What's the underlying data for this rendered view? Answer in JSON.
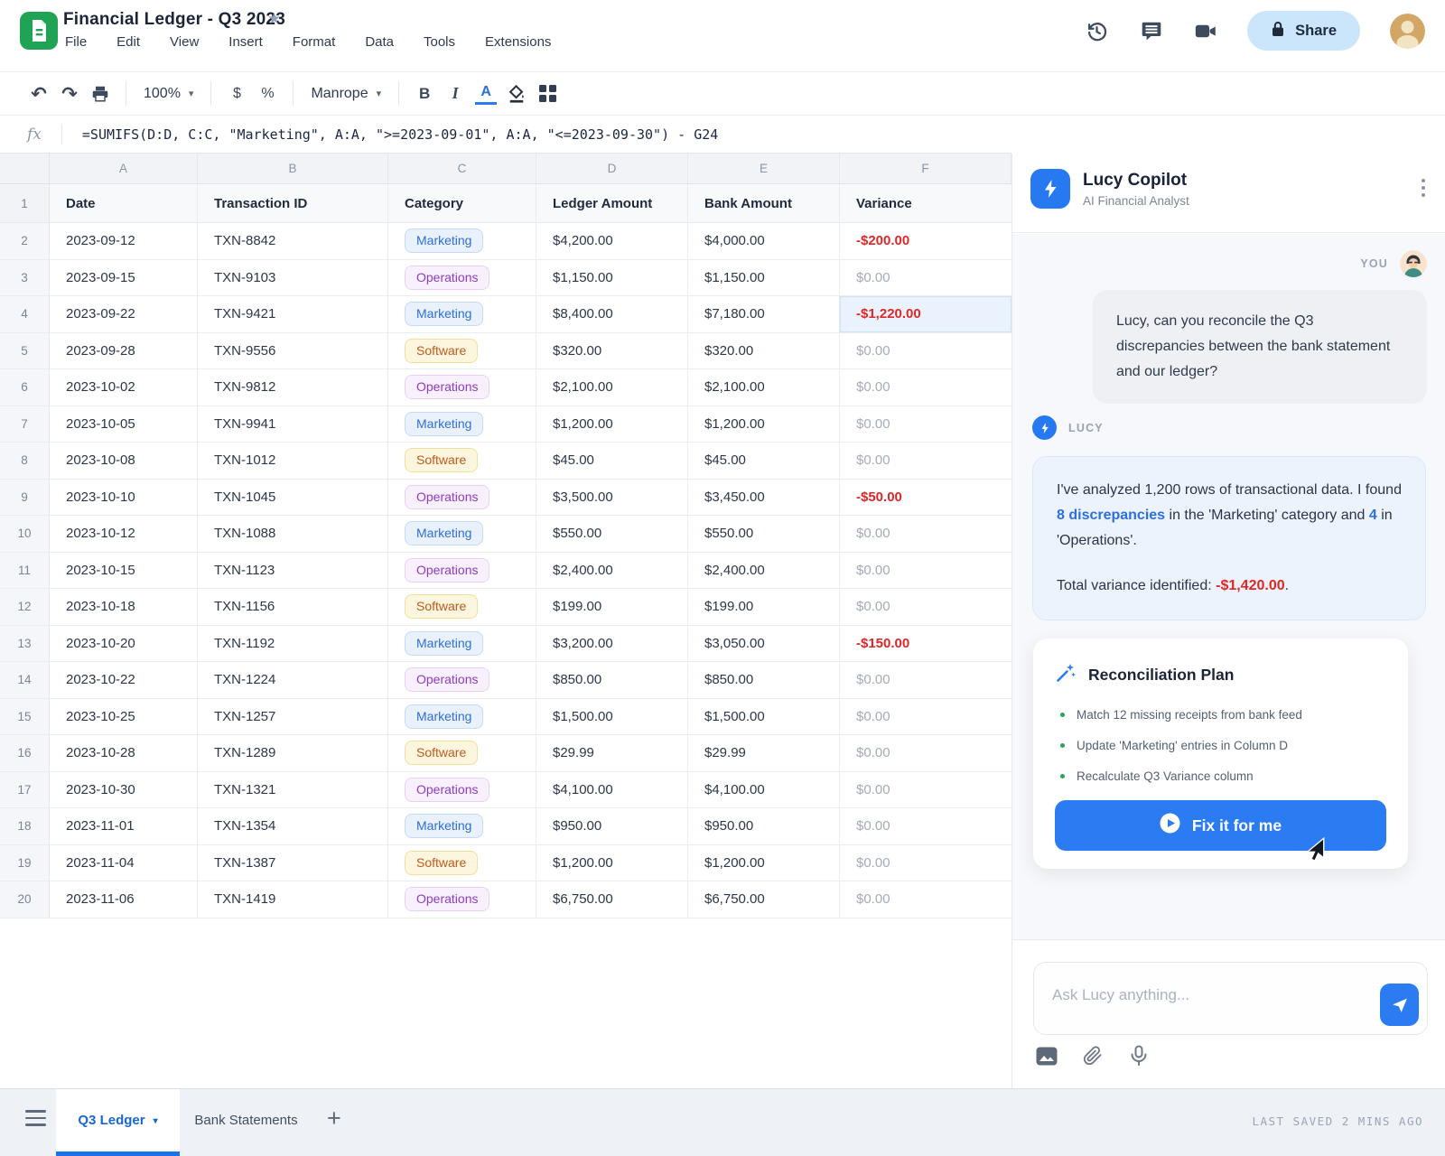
{
  "colors": {
    "accent": "#2b7bf3",
    "negative": "#de2727",
    "active_tab_underline": "#1a73e8",
    "badge_marketing": {
      "bg": "#e9f1fd",
      "border": "#c5daf8",
      "text": "#2e6fd8"
    },
    "badge_operations": {
      "bg": "#f9f0fe",
      "border": "#ead0f6",
      "text": "#8e3cc0"
    },
    "badge_software": {
      "bg": "#fdf6df",
      "border": "#f1df9f",
      "text": "#c05a1e"
    }
  },
  "window": {
    "title": "Financial Ledger - Q3 2023",
    "menus": [
      "File",
      "Edit",
      "View",
      "Insert",
      "Format",
      "Data",
      "Tools",
      "Extensions"
    ],
    "share_label": "Share"
  },
  "toolbar": {
    "zoom_value": "100%",
    "currency_label": "$",
    "percent_label": "%",
    "font_name": "Manrope",
    "bold_label": "B",
    "italic_label": "I",
    "text_color_label": "A",
    "caret": "▾"
  },
  "formula_bar": {
    "fx_label": "fx",
    "formula": "=SUMIFS(D:D, C:C, \"Marketing\", A:A, \">=2023-09-01\", A:A, \"<=2023-09-30\") - G24"
  },
  "sheet": {
    "col_letters": [
      "A",
      "B",
      "C",
      "D",
      "E",
      "F"
    ],
    "header_row_num": "1",
    "headers": [
      "Date",
      "Transaction ID",
      "Category",
      "Ledger Amount",
      "Bank Amount",
      "Variance"
    ],
    "rows": [
      {
        "num": "2",
        "date": "2023-09-12",
        "txn_id": "TXN-8842",
        "category": "Marketing",
        "ledger": "$4,200.00",
        "bank": "$4,000.00",
        "variance": "-$200.00",
        "negative": true,
        "highlight": false
      },
      {
        "num": "3",
        "date": "2023-09-15",
        "txn_id": "TXN-9103",
        "category": "Operations",
        "ledger": "$1,150.00",
        "bank": "$1,150.00",
        "variance": "$0.00",
        "negative": false,
        "highlight": false
      },
      {
        "num": "4",
        "date": "2023-09-22",
        "txn_id": "TXN-9421",
        "category": "Marketing",
        "ledger": "$8,400.00",
        "bank": "$7,180.00",
        "variance": "-$1,220.00",
        "negative": true,
        "highlight": true
      },
      {
        "num": "5",
        "date": "2023-09-28",
        "txn_id": "TXN-9556",
        "category": "Software",
        "ledger": "$320.00",
        "bank": "$320.00",
        "variance": "$0.00",
        "negative": false,
        "highlight": false
      },
      {
        "num": "6",
        "date": "2023-10-02",
        "txn_id": "TXN-9812",
        "category": "Operations",
        "ledger": "$2,100.00",
        "bank": "$2,100.00",
        "variance": "$0.00",
        "negative": false,
        "highlight": false
      },
      {
        "num": "7",
        "date": "2023-10-05",
        "txn_id": "TXN-9941",
        "category": "Marketing",
        "ledger": "$1,200.00",
        "bank": "$1,200.00",
        "variance": "$0.00",
        "negative": false,
        "highlight": false
      },
      {
        "num": "8",
        "date": "2023-10-08",
        "txn_id": "TXN-1012",
        "category": "Software",
        "ledger": "$45.00",
        "bank": "$45.00",
        "variance": "$0.00",
        "negative": false,
        "highlight": false
      },
      {
        "num": "9",
        "date": "2023-10-10",
        "txn_id": "TXN-1045",
        "category": "Operations",
        "ledger": "$3,500.00",
        "bank": "$3,450.00",
        "variance": "-$50.00",
        "negative": true,
        "highlight": false
      },
      {
        "num": "10",
        "date": "2023-10-12",
        "txn_id": "TXN-1088",
        "category": "Marketing",
        "ledger": "$550.00",
        "bank": "$550.00",
        "variance": "$0.00",
        "negative": false,
        "highlight": false
      },
      {
        "num": "11",
        "date": "2023-10-15",
        "txn_id": "TXN-1123",
        "category": "Operations",
        "ledger": "$2,400.00",
        "bank": "$2,400.00",
        "variance": "$0.00",
        "negative": false,
        "highlight": false
      },
      {
        "num": "12",
        "date": "2023-10-18",
        "txn_id": "TXN-1156",
        "category": "Software",
        "ledger": "$199.00",
        "bank": "$199.00",
        "variance": "$0.00",
        "negative": false,
        "highlight": false
      },
      {
        "num": "13",
        "date": "2023-10-20",
        "txn_id": "TXN-1192",
        "category": "Marketing",
        "ledger": "$3,200.00",
        "bank": "$3,050.00",
        "variance": "-$150.00",
        "negative": true,
        "highlight": false
      },
      {
        "num": "14",
        "date": "2023-10-22",
        "txn_id": "TXN-1224",
        "category": "Operations",
        "ledger": "$850.00",
        "bank": "$850.00",
        "variance": "$0.00",
        "negative": false,
        "highlight": false
      },
      {
        "num": "15",
        "date": "2023-10-25",
        "txn_id": "TXN-1257",
        "category": "Marketing",
        "ledger": "$1,500.00",
        "bank": "$1,500.00",
        "variance": "$0.00",
        "negative": false,
        "highlight": false
      },
      {
        "num": "16",
        "date": "2023-10-28",
        "txn_id": "TXN-1289",
        "category": "Software",
        "ledger": "$29.99",
        "bank": "$29.99",
        "variance": "$0.00",
        "negative": false,
        "highlight": false
      },
      {
        "num": "17",
        "date": "2023-10-30",
        "txn_id": "TXN-1321",
        "category": "Operations",
        "ledger": "$4,100.00",
        "bank": "$4,100.00",
        "variance": "$0.00",
        "negative": false,
        "highlight": false
      },
      {
        "num": "18",
        "date": "2023-11-01",
        "txn_id": "TXN-1354",
        "category": "Marketing",
        "ledger": "$950.00",
        "bank": "$950.00",
        "variance": "$0.00",
        "negative": false,
        "highlight": false
      },
      {
        "num": "19",
        "date": "2023-11-04",
        "txn_id": "TXN-1387",
        "category": "Software",
        "ledger": "$1,200.00",
        "bank": "$1,200.00",
        "variance": "$0.00",
        "negative": false,
        "highlight": false
      },
      {
        "num": "20",
        "date": "2023-11-06",
        "txn_id": "TXN-1419",
        "category": "Operations",
        "ledger": "$6,750.00",
        "bank": "$6,750.00",
        "variance": "$0.00",
        "negative": false,
        "highlight": false
      }
    ]
  },
  "copilot": {
    "name": "Lucy Copilot",
    "role": "AI Financial Analyst",
    "you_label": "YOU",
    "lucy_label": "LUCY",
    "user_message": "Lucy, can you reconcile the Q3 discrepancies between the bank statement and our ledger?",
    "lucy_message": {
      "p1": "I've analyzed 1,200 rows of transactional data. I found ",
      "highlight1": "8 discrepancies",
      "p2": " in the 'Marketing' category and ",
      "highlight2": "4",
      "p3": " in 'Operations'.",
      "total_label": "Total variance identified: ",
      "total_value": "-$1,420.00",
      "total_suffix": "."
    }
  },
  "plan": {
    "title": "Reconciliation Plan",
    "items": [
      "Match 12 missing receipts from bank feed",
      "Update 'Marketing' entries in Column D",
      "Recalculate Q3 Variance column"
    ],
    "cta_label": "Fix it for me"
  },
  "composer": {
    "placeholder": "Ask Lucy anything..."
  },
  "tabbar": {
    "tabs": [
      {
        "label": "Q3 Ledger",
        "active": true
      },
      {
        "label": "Bank Statements",
        "active": false
      }
    ],
    "add_label": "+",
    "status": "LAST SAVED 2 MINS AGO"
  }
}
